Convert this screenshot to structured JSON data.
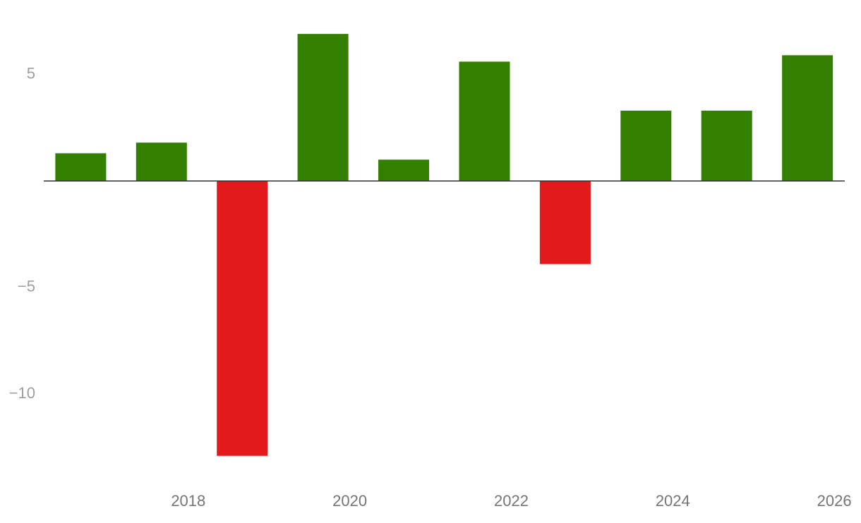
{
  "chart_data": {
    "type": "bar",
    "x": [
      2017,
      2018,
      2019,
      2020,
      2021,
      2022,
      2023,
      2024,
      2025,
      2026
    ],
    "values": [
      1.3,
      1.8,
      -12.9,
      6.9,
      1.0,
      5.6,
      -3.9,
      3.3,
      3.3,
      5.9
    ],
    "positive_color": "#338000",
    "negative_color": "#e31a1c",
    "xlim": [
      2016.21,
      2026.13
    ],
    "xticks": [
      2018,
      2020,
      2022,
      2024,
      2026
    ],
    "ylim": [
      -14,
      7.5
    ],
    "yticks": [
      {
        "value": -10,
        "label": "−10"
      },
      {
        "value": -5,
        "label": "−5"
      },
      5
    ],
    "grid": false
  }
}
